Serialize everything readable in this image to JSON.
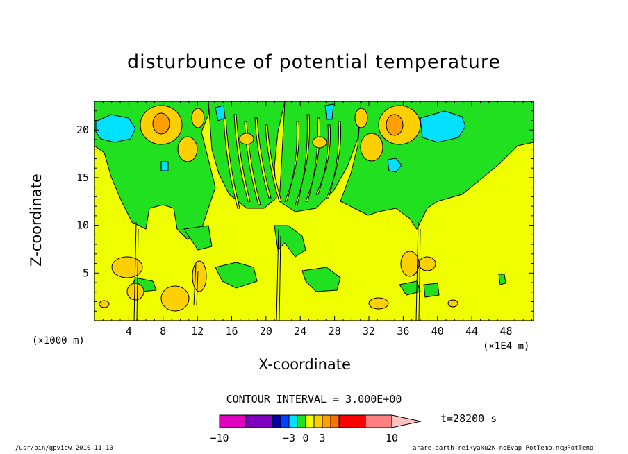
{
  "chart_data": {
    "type": "heatmap",
    "title": "disturbunce of potential temperature",
    "xlabel": "X-coordinate",
    "ylabel": "Z-coordinate",
    "x_unit_note_left": "(×1000 m)",
    "x_unit_note_right": "(×1E4 m)",
    "x_ticks": [
      4,
      8,
      12,
      16,
      20,
      24,
      28,
      32,
      36,
      40,
      44,
      48
    ],
    "y_ticks": [
      5,
      10,
      15,
      20
    ],
    "xlim": [
      0,
      51.2
    ],
    "ylim": [
      0,
      23
    ],
    "contour_interval": "CONTOUR INTERVAL = 3.000E+00",
    "time": "t=28200 s",
    "colorbar": {
      "tick_labels": [
        {
          "value": -10,
          "label": "−10"
        },
        {
          "value": -3,
          "label": "−3"
        },
        {
          "value": 0,
          "label": "0"
        },
        {
          "value": 3,
          "label": "3"
        },
        {
          "value": 10,
          "label": "10"
        }
      ],
      "colors": [
        "#e000c0",
        "#8000c0",
        "#0000a0",
        "#0040ff",
        "#00e0ff",
        "#20e020",
        "#f0ff00",
        "#ffd000",
        "#ffa000",
        "#ff7000",
        "#ff0000",
        "#ff8080",
        "#ffc0c0"
      ]
    },
    "palette": {
      "background": "#f0ff00",
      "green": "#20e020",
      "cyan": "#00e0ff",
      "gold": "#ffd000",
      "orange": "#ffa000"
    }
  },
  "footer": {
    "left": "/usr/bin/gpview  2010-11-10",
    "right": "arare-earth-reikyaku2K-noEvap_PotTemp.nc@PotTemp"
  }
}
